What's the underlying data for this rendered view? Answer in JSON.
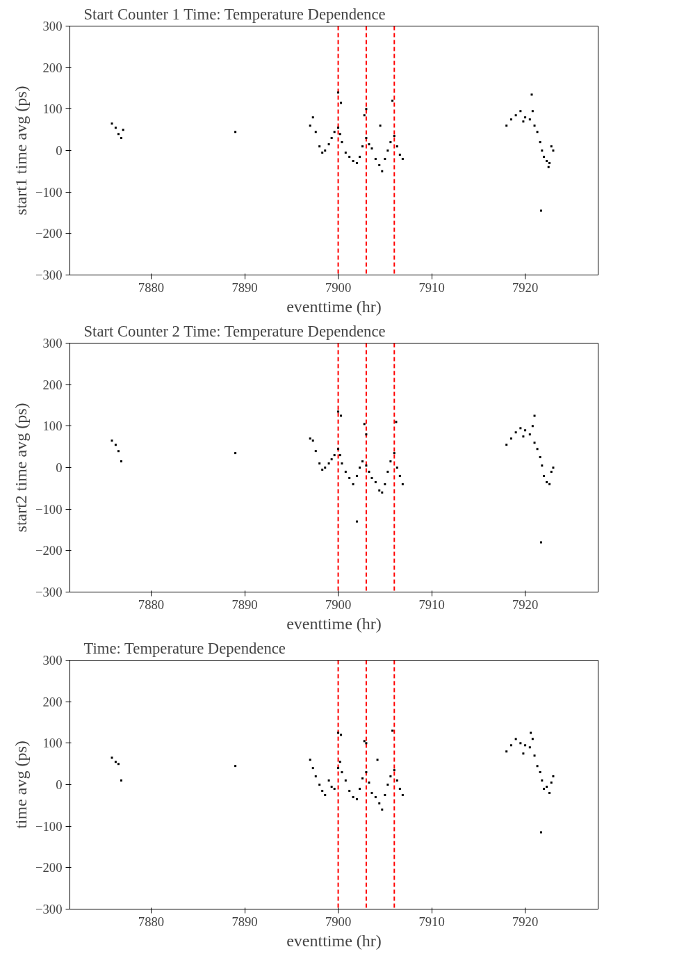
{
  "chart_data": [
    {
      "type": "scatter",
      "title": "Start Counter 1 Time: Temperature Dependence",
      "xlabel": "eventtime (hr)",
      "ylabel": "start1 time avg (ps)",
      "xlim": [
        7871.3,
        7927.8
      ],
      "ylim": [
        -300,
        300
      ],
      "xticks": [
        7880,
        7890,
        7900,
        7910,
        7920
      ],
      "yticks": [
        -300,
        -200,
        -100,
        0,
        100,
        200,
        300
      ],
      "grid": false,
      "marker": "square",
      "ref_lines": [
        {
          "axis": "x",
          "value": 7900,
          "color": "#ff0000",
          "line_style": "dashed"
        },
        {
          "axis": "x",
          "value": 7903,
          "color": "#ff0000",
          "line_style": "dashed"
        },
        {
          "axis": "x",
          "value": 7906,
          "color": "#ff0000",
          "line_style": "dashed"
        }
      ],
      "series": [
        {
          "color": "#000000",
          "x": [
            7875.8,
            7876.2,
            7876.5,
            7876.8,
            7877,
            7889,
            7897,
            7897.3,
            7897.6,
            7898,
            7898.3,
            7898.6,
            7899,
            7899.3,
            7899.6,
            7900,
            7900.2,
            7900.4,
            7900.8,
            7901.2,
            7901.6,
            7902,
            7902.3,
            7902.6,
            7903,
            7903.3,
            7903.6,
            7904,
            7904.4,
            7904.7,
            7905,
            7905.3,
            7905.6,
            7906,
            7906.3,
            7906.6,
            7906.9,
            7900,
            7900.3,
            7903,
            7902.8,
            7905.8,
            7904.5,
            7918,
            7918.5,
            7919,
            7919.5,
            7919.8,
            7920,
            7920.5,
            7920.8,
            7921,
            7921.3,
            7921.6,
            7921.8,
            7922,
            7922.3,
            7922.6,
            7922.8,
            7923,
            7920.7,
            7921.7,
            7922.5
          ],
          "values": [
            65,
            55,
            40,
            30,
            50,
            45,
            60,
            80,
            45,
            10,
            -5,
            0,
            15,
            30,
            45,
            55,
            40,
            20,
            -5,
            -15,
            -25,
            -30,
            -15,
            10,
            30,
            15,
            5,
            -20,
            -35,
            -50,
            -20,
            0,
            20,
            35,
            10,
            -10,
            -20,
            140,
            115,
            100,
            85,
            120,
            60,
            60,
            75,
            85,
            95,
            70,
            80,
            75,
            95,
            60,
            45,
            20,
            0,
            -15,
            -25,
            -30,
            10,
            0,
            135,
            -145,
            -40
          ]
        }
      ]
    },
    {
      "type": "scatter",
      "title": "Start Counter 2 Time: Temperature Dependence",
      "xlabel": "eventtime (hr)",
      "ylabel": "start2 time avg (ps)",
      "xlim": [
        7871.3,
        7927.8
      ],
      "ylim": [
        -300,
        300
      ],
      "xticks": [
        7880,
        7890,
        7900,
        7910,
        7920
      ],
      "yticks": [
        -300,
        -200,
        -100,
        0,
        100,
        200,
        300
      ],
      "grid": false,
      "marker": "square",
      "ref_lines": [
        {
          "axis": "x",
          "value": 7900,
          "color": "#ff0000",
          "line_style": "dashed"
        },
        {
          "axis": "x",
          "value": 7903,
          "color": "#ff0000",
          "line_style": "dashed"
        },
        {
          "axis": "x",
          "value": 7906,
          "color": "#ff0000",
          "line_style": "dashed"
        }
      ],
      "series": [
        {
          "color": "#000000",
          "x": [
            7875.8,
            7876.2,
            7876.5,
            7876.8,
            7889,
            7897,
            7897.3,
            7897.6,
            7898,
            7898.3,
            7898.6,
            7899,
            7899.3,
            7899.6,
            7900,
            7900.2,
            7900.4,
            7900.8,
            7901.2,
            7901.6,
            7902,
            7902.3,
            7902.6,
            7903,
            7903.3,
            7903.6,
            7904,
            7904.4,
            7904.7,
            7905,
            7905.3,
            7905.6,
            7906,
            7906.3,
            7906.6,
            7906.9,
            7900,
            7900.3,
            7902.8,
            7903,
            7906.2,
            7902,
            7918,
            7918.5,
            7919,
            7919.5,
            7919.8,
            7920,
            7920.5,
            7920.8,
            7921,
            7921.3,
            7921.6,
            7921.8,
            7922,
            7922.3,
            7922.6,
            7922.8,
            7923,
            7921,
            7921.7
          ],
          "values": [
            65,
            55,
            40,
            15,
            35,
            70,
            65,
            40,
            10,
            -5,
            0,
            10,
            20,
            30,
            45,
            30,
            10,
            -10,
            -25,
            -40,
            -20,
            0,
            15,
            5,
            -10,
            -25,
            -35,
            -55,
            -60,
            -40,
            -10,
            15,
            35,
            0,
            -20,
            -40,
            135,
            125,
            105,
            80,
            110,
            -130,
            55,
            70,
            85,
            95,
            75,
            90,
            80,
            100,
            60,
            45,
            25,
            5,
            -20,
            -35,
            -40,
            -10,
            0,
            125,
            -180
          ]
        }
      ]
    },
    {
      "type": "scatter",
      "title": "Time: Temperature Dependence",
      "xlabel": "eventtime (hr)",
      "ylabel": "time avg (ps)",
      "xlim": [
        7871.3,
        7927.8
      ],
      "ylim": [
        -300,
        300
      ],
      "xticks": [
        7880,
        7890,
        7900,
        7910,
        7920
      ],
      "yticks": [
        -300,
        -200,
        -100,
        0,
        100,
        200,
        300
      ],
      "grid": false,
      "marker": "square",
      "ref_lines": [
        {
          "axis": "x",
          "value": 7900,
          "color": "#ff0000",
          "line_style": "dashed"
        },
        {
          "axis": "x",
          "value": 7903,
          "color": "#ff0000",
          "line_style": "dashed"
        },
        {
          "axis": "x",
          "value": 7906,
          "color": "#ff0000",
          "line_style": "dashed"
        }
      ],
      "series": [
        {
          "color": "#000000",
          "x": [
            7875.8,
            7876.2,
            7876.5,
            7876.8,
            7889,
            7897,
            7897.3,
            7897.6,
            7898,
            7898.3,
            7898.6,
            7899,
            7899.3,
            7899.6,
            7900,
            7900.2,
            7900.4,
            7900.8,
            7901.2,
            7901.6,
            7902,
            7902.3,
            7902.6,
            7903,
            7903.3,
            7903.6,
            7904,
            7904.4,
            7904.7,
            7905,
            7905.3,
            7905.6,
            7906,
            7906.3,
            7906.6,
            7906.9,
            7900,
            7900.3,
            7902.8,
            7903,
            7905.8,
            7904.2,
            7918,
            7918.5,
            7919,
            7919.5,
            7919.8,
            7920,
            7920.5,
            7920.8,
            7921,
            7921.3,
            7921.6,
            7921.8,
            7922,
            7922.3,
            7922.6,
            7922.8,
            7923,
            7920.6,
            7921.7
          ],
          "values": [
            65,
            55,
            50,
            10,
            45,
            60,
            40,
            20,
            0,
            -15,
            -25,
            10,
            -5,
            -10,
            40,
            55,
            30,
            10,
            -15,
            -30,
            -35,
            -10,
            15,
            30,
            5,
            -20,
            -30,
            -45,
            -60,
            -25,
            0,
            20,
            35,
            10,
            -10,
            -25,
            125,
            120,
            105,
            100,
            130,
            60,
            80,
            95,
            110,
            100,
            75,
            95,
            90,
            110,
            70,
            45,
            30,
            10,
            -10,
            -5,
            -20,
            5,
            20,
            125,
            -115
          ]
        }
      ]
    }
  ]
}
